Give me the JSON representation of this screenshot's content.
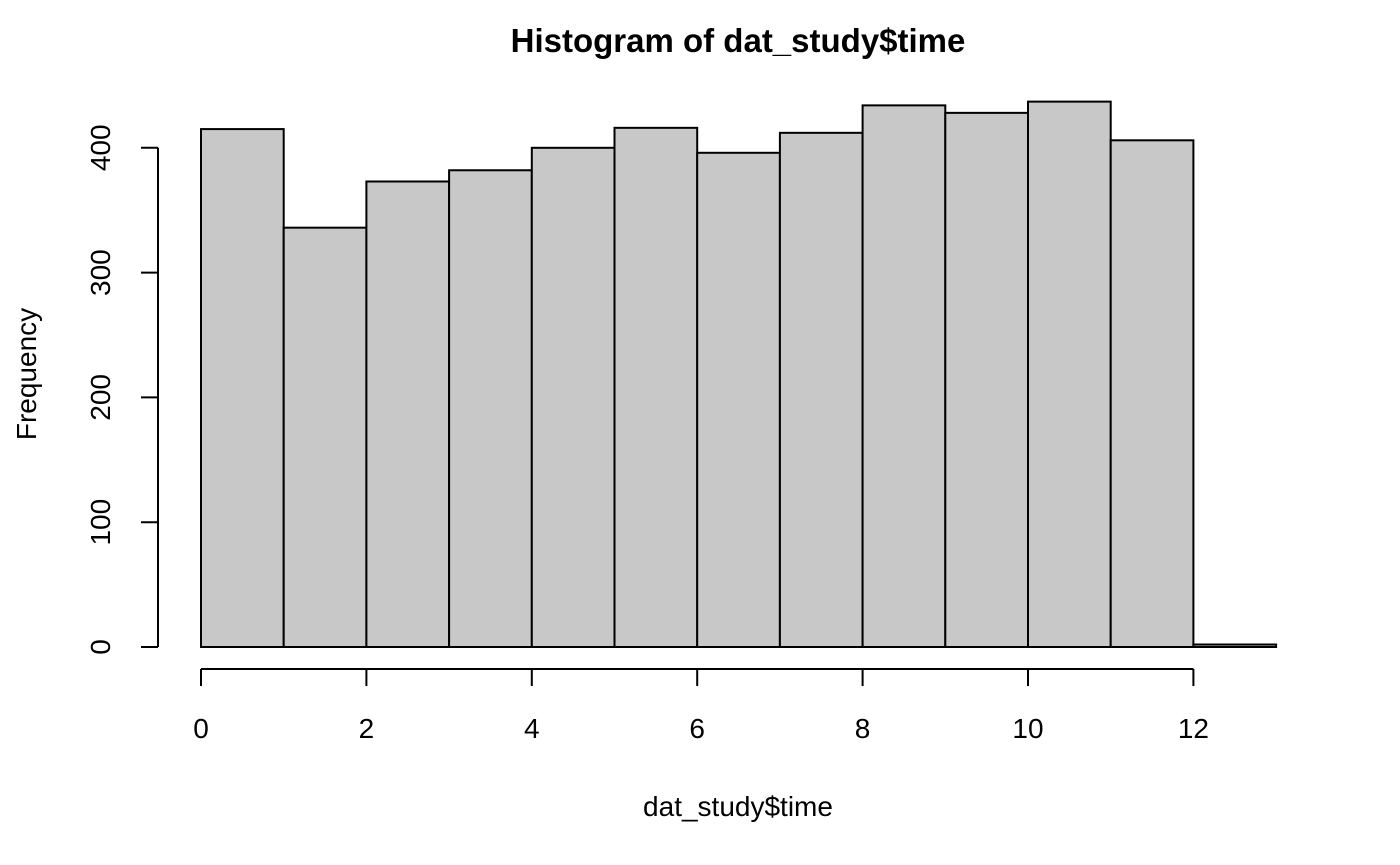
{
  "chart_data": {
    "type": "bar",
    "title": "Histogram of dat_study$time",
    "xlabel": "dat_study$time",
    "ylabel": "Frequency",
    "bins": [
      {
        "x0": 0,
        "x1": 1,
        "count": 415
      },
      {
        "x0": 1,
        "x1": 2,
        "count": 336
      },
      {
        "x0": 2,
        "x1": 3,
        "count": 373
      },
      {
        "x0": 3,
        "x1": 4,
        "count": 382
      },
      {
        "x0": 4,
        "x1": 5,
        "count": 400
      },
      {
        "x0": 5,
        "x1": 6,
        "count": 416
      },
      {
        "x0": 6,
        "x1": 7,
        "count": 396
      },
      {
        "x0": 7,
        "x1": 8,
        "count": 412
      },
      {
        "x0": 8,
        "x1": 9,
        "count": 434
      },
      {
        "x0": 9,
        "x1": 10,
        "count": 428
      },
      {
        "x0": 10,
        "x1": 11,
        "count": 437
      },
      {
        "x0": 11,
        "x1": 12,
        "count": 406
      },
      {
        "x0": 12,
        "x1": 13,
        "count": 2
      }
    ],
    "xticks": [
      0,
      2,
      4,
      6,
      8,
      10,
      12
    ],
    "yticks": [
      0,
      100,
      200,
      300,
      400
    ],
    "xlim": [
      0,
      13
    ],
    "ylim": [
      0,
      437
    ],
    "grid": false,
    "bar_fill": "#c8c8c8",
    "bar_stroke": "#000000"
  }
}
